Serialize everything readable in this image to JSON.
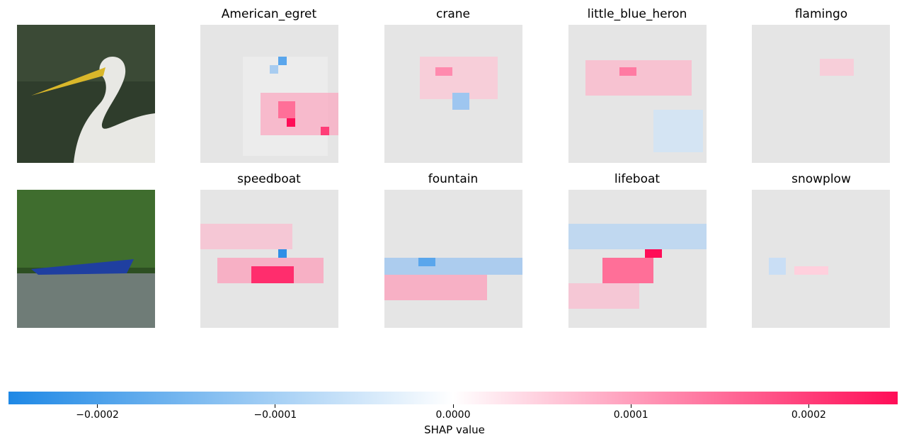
{
  "chart_data": {
    "type": "heatmap",
    "rows": [
      {
        "image": "egret",
        "labels": [
          "American_egret",
          "crane",
          "little_blue_heron",
          "flamingo"
        ]
      },
      {
        "image": "speedboat",
        "labels": [
          "speedboat",
          "fountain",
          "lifeboat",
          "snowplow"
        ]
      }
    ],
    "colorbar": {
      "label": "SHAP value",
      "range": [
        -0.00025,
        0.00025
      ],
      "ticks": [
        -0.0002,
        -0.0001,
        0.0,
        0.0001,
        0.0002
      ],
      "tick_labels": [
        "−0.0002",
        "−0.0001",
        "0.0000",
        "0.0001",
        "0.0002"
      ],
      "negative_color": "#1e88e5",
      "positive_color": "#ff0d57"
    }
  }
}
